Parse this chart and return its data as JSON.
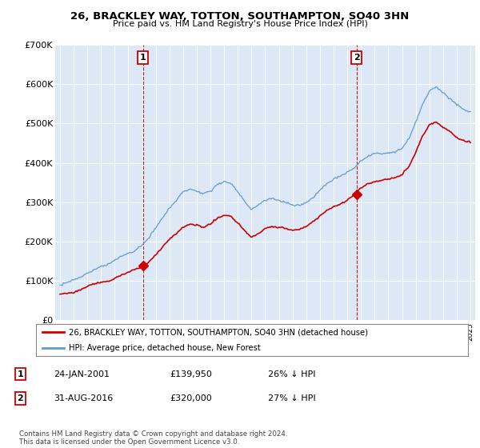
{
  "title": "26, BRACKLEY WAY, TOTTON, SOUTHAMPTON, SO40 3HN",
  "subtitle": "Price paid vs. HM Land Registry's House Price Index (HPI)",
  "ylim": [
    0,
    700000
  ],
  "yticks": [
    0,
    100000,
    200000,
    300000,
    400000,
    500000,
    600000,
    700000
  ],
  "ytick_labels": [
    "£0",
    "£100K",
    "£200K",
    "£300K",
    "£400K",
    "£500K",
    "£600K",
    "£700K"
  ],
  "bg_color": "#ffffff",
  "plot_bg_color": "#dce8f5",
  "grid_color": "#ffffff",
  "hpi_color": "#6699cc",
  "price_color": "#cc0000",
  "legend_line1": "26, BRACKLEY WAY, TOTTON, SOUTHAMPTON, SO40 3HN (detached house)",
  "legend_line2": "HPI: Average price, detached house, New Forest",
  "table_row1": [
    "1",
    "24-JAN-2001",
    "£139,950",
    "26% ↓ HPI"
  ],
  "table_row2": [
    "2",
    "31-AUG-2016",
    "£320,000",
    "27% ↓ HPI"
  ],
  "footer": "Contains HM Land Registry data © Crown copyright and database right 2024.\nThis data is licensed under the Open Government Licence v3.0.",
  "x_start_year": 1995,
  "x_end_year": 2025,
  "sale1_x": 2001.07,
  "sale2_x": 2016.67,
  "sale1_price": 139950,
  "sale2_price": 320000
}
